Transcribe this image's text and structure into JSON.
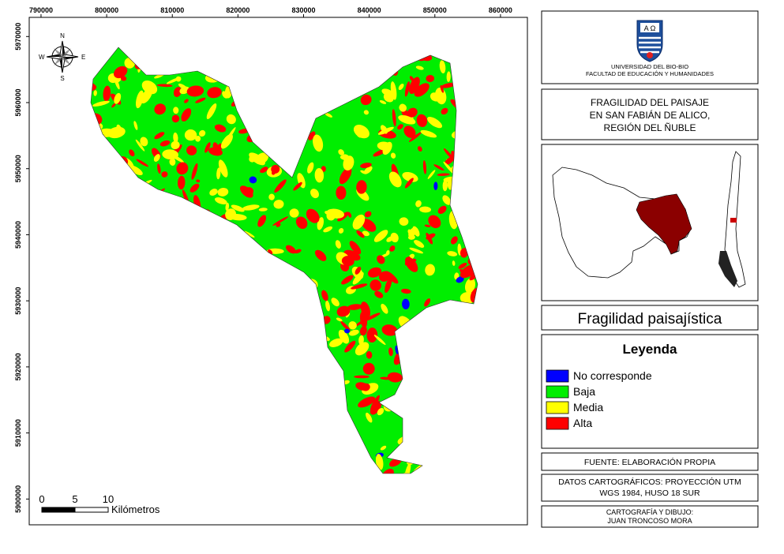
{
  "map": {
    "xlim": [
      788200,
      864100
    ],
    "ylim": [
      5896100,
      5972900
    ],
    "xticks": [
      790000,
      800000,
      810000,
      820000,
      830000,
      840000,
      850000,
      860000
    ],
    "yticks": [
      5900000,
      5910000,
      5920000,
      5930000,
      5940000,
      5950000,
      5960000,
      5970000
    ]
  },
  "compass": {
    "n": "N",
    "s": "S",
    "e": "E",
    "w": "W"
  },
  "scale_bar": {
    "labels": [
      0,
      5,
      10
    ],
    "unit": "Kilómetros"
  },
  "institution": {
    "name": "UNIVERSIDAD DEL BIO-BIO",
    "faculty": "FACULTAD DE EDUCACIÓN Y HUMANIDADES"
  },
  "title": [
    "FRAGILIDAD DEL PAISAJE",
    "EN SAN FABIÁN DE ALICO,",
    "REGIÓN DEL ÑUBLE"
  ],
  "theme": "Fragilidad paisajística",
  "legend": {
    "title": "Leyenda",
    "items": [
      {
        "label": "No corresponde",
        "color": "#0000ff"
      },
      {
        "label": "Baja",
        "color": "#00ee00"
      },
      {
        "label": "Media",
        "color": "#ffff00"
      },
      {
        "label": "Alta",
        "color": "#ff0000"
      }
    ]
  },
  "source": "FUENTE: ELABORACIÓN PROPIA",
  "cartographic_data": [
    "DATOS CARTOGRÁFICOS: PROYECCIÓN UTM",
    "WGS 1984, HUSO 18 SUR"
  ],
  "credits": [
    "CARTOGRAFÍA Y DIBUJO:",
    "JUAN TRONCOSO MORA"
  ]
}
